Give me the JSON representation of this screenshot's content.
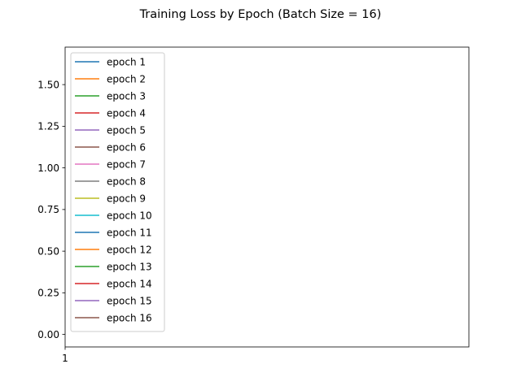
{
  "chart_data": {
    "type": "line",
    "title": "Training Loss by Epoch (Batch Size = 16)",
    "xlabel": "",
    "ylabel": "",
    "x_ticks": [
      "1"
    ],
    "xlim": [
      1,
      2
    ],
    "ylim": [
      -0.075,
      1.725
    ],
    "y_ticks": [
      0.0,
      0.25,
      0.5,
      0.75,
      1.0,
      1.25,
      1.5
    ],
    "y_tick_labels": [
      "0.00",
      "0.25",
      "0.50",
      "0.75",
      "1.00",
      "1.25",
      "1.50"
    ],
    "grid": false,
    "legend_position": "upper-left",
    "series": [
      {
        "name": "epoch 1",
        "color": "#1f77b4",
        "values": []
      },
      {
        "name": "epoch 2",
        "color": "#ff7f0e",
        "values": []
      },
      {
        "name": "epoch 3",
        "color": "#2ca02c",
        "values": []
      },
      {
        "name": "epoch 4",
        "color": "#d62728",
        "values": []
      },
      {
        "name": "epoch 5",
        "color": "#9467bd",
        "values": []
      },
      {
        "name": "epoch 6",
        "color": "#8c564b",
        "values": []
      },
      {
        "name": "epoch 7",
        "color": "#e377c2",
        "values": []
      },
      {
        "name": "epoch 8",
        "color": "#7f7f7f",
        "values": []
      },
      {
        "name": "epoch 9",
        "color": "#bcbd22",
        "values": []
      },
      {
        "name": "epoch 10",
        "color": "#17becf",
        "values": []
      },
      {
        "name": "epoch 11",
        "color": "#1f77b4",
        "values": []
      },
      {
        "name": "epoch 12",
        "color": "#ff7f0e",
        "values": []
      },
      {
        "name": "epoch 13",
        "color": "#2ca02c",
        "values": []
      },
      {
        "name": "epoch 14",
        "color": "#d62728",
        "values": []
      },
      {
        "name": "epoch 15",
        "color": "#9467bd",
        "values": []
      },
      {
        "name": "epoch 16",
        "color": "#8c564b",
        "values": []
      }
    ]
  }
}
